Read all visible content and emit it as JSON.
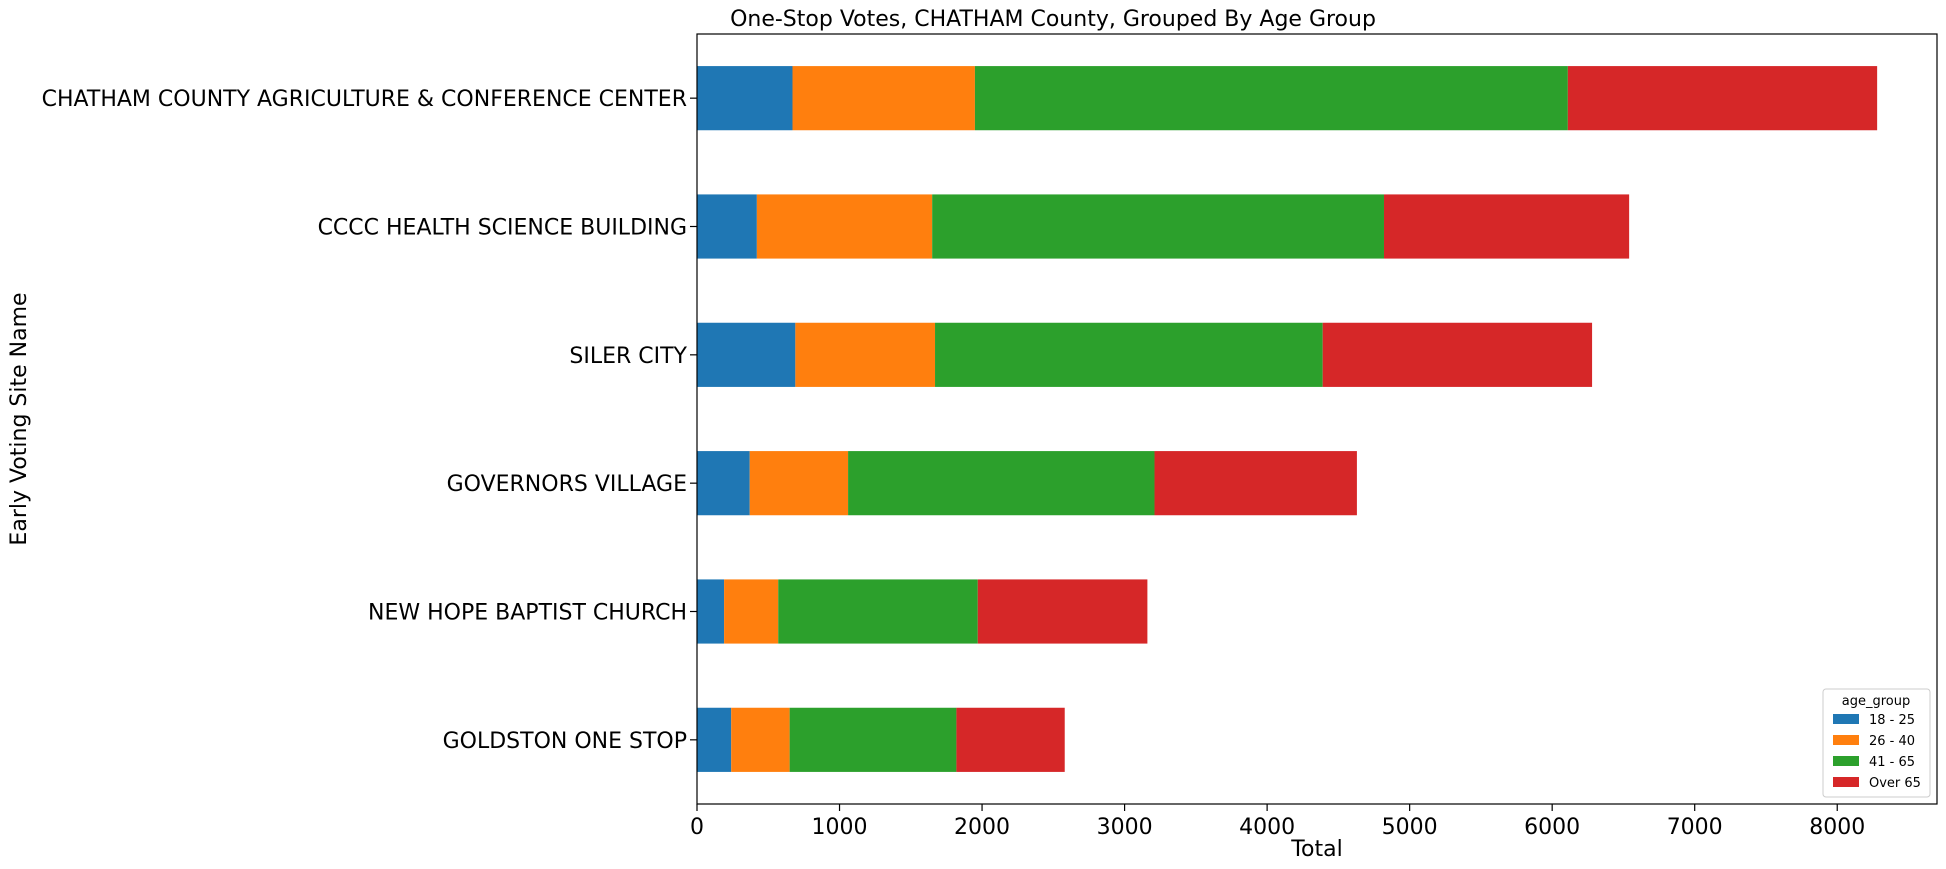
{
  "chart_data": {
    "type": "bar",
    "orientation": "horizontal",
    "stacked": true,
    "title": "One-Stop Votes, CHATHAM County, Grouped By Age Group",
    "xlabel": "Total",
    "ylabel": "Early Voting Site Name",
    "xlim": [
      0,
      8700
    ],
    "xticks": [
      0,
      1000,
      2000,
      3000,
      4000,
      5000,
      6000,
      7000,
      8000
    ],
    "grid": false,
    "legend": {
      "title": "age_group",
      "placement": "lower right"
    },
    "categories": [
      "CHATHAM COUNTY AGRICULTURE & CONFERENCE CENTER",
      "CCCC HEALTH SCIENCE BUILDING",
      "SILER CITY",
      "GOVERNORS VILLAGE",
      "NEW HOPE BAPTIST CHURCH",
      "GOLDSTON ONE STOP"
    ],
    "series": [
      {
        "name": "18 - 25",
        "color": "#1f77b4",
        "values": [
          670,
          420,
          690,
          370,
          190,
          240
        ]
      },
      {
        "name": "26 - 40",
        "color": "#ff7f0e",
        "values": [
          1280,
          1230,
          980,
          690,
          380,
          410
        ]
      },
      {
        "name": "41 - 65",
        "color": "#2ca02c",
        "values": [
          4160,
          3170,
          2720,
          2150,
          1400,
          1170
        ]
      },
      {
        "name": "Over 65",
        "color": "#d62728",
        "values": [
          2170,
          1720,
          1890,
          1420,
          1190,
          760
        ]
      }
    ]
  }
}
